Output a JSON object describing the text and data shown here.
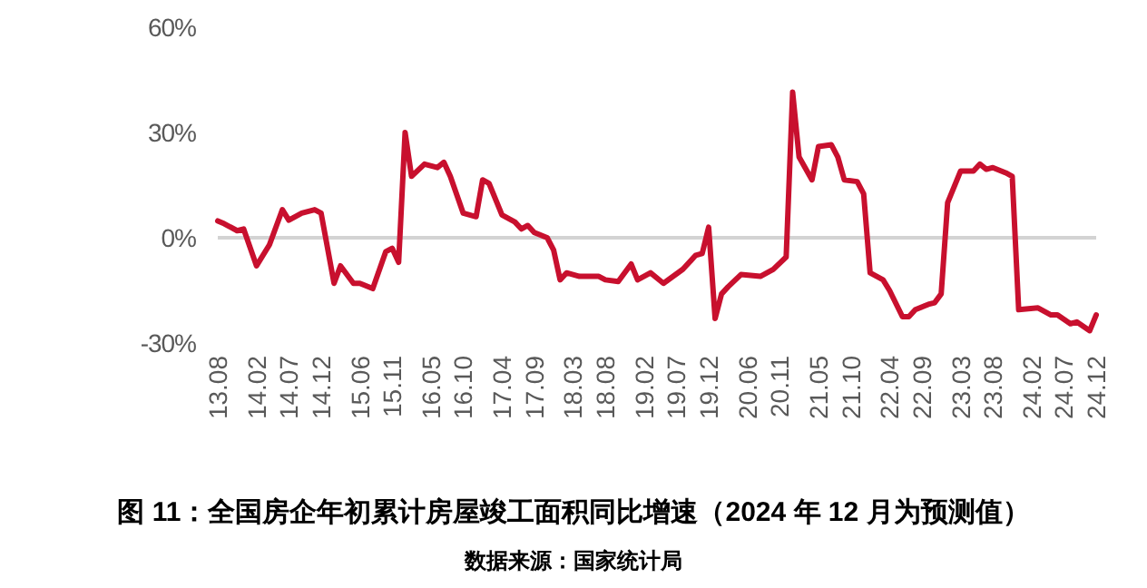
{
  "chart_data": {
    "type": "line",
    "title": "图 11：全国房企年初累计房屋竣工面积同比增速（2024 年 12 月为预测值）",
    "annotations": [
      "数据来源：国家统计局"
    ],
    "x": [
      "2013-08",
      "2013-09",
      "2013-11",
      "2013-12",
      "2014-02",
      "2014-04",
      "2014-06",
      "2014-07",
      "2014-09",
      "2014-11",
      "2014-12",
      "2015-02",
      "2015-03",
      "2015-05",
      "2015-06",
      "2015-08",
      "2015-10",
      "2015-11",
      "2015-12",
      "2016-01",
      "2016-02",
      "2016-04",
      "2016-06",
      "2016-07",
      "2016-08",
      "2016-10",
      "2016-12",
      "2017-01",
      "2017-02",
      "2017-04",
      "2017-06",
      "2017-07",
      "2017-08",
      "2017-09",
      "2017-11",
      "2017-12",
      "2018-01",
      "2018-02",
      "2018-04",
      "2018-07",
      "2018-08",
      "2018-10",
      "2018-12",
      "2019-01",
      "2019-03",
      "2019-05",
      "2019-08",
      "2019-10",
      "2019-11",
      "2019-12",
      "2020-01",
      "2020-02",
      "2020-03",
      "2020-05",
      "2020-08",
      "2020-10",
      "2020-12",
      "2021-01",
      "2021-02",
      "2021-04",
      "2021-05",
      "2021-07",
      "2021-08",
      "2021-09",
      "2021-11",
      "2021-12",
      "2022-01",
      "2022-03",
      "2022-04",
      "2022-06",
      "2022-07",
      "2022-08",
      "2022-10",
      "2022-11",
      "2022-12",
      "2023-01",
      "2023-03",
      "2023-05",
      "2023-06",
      "2023-07",
      "2023-08",
      "2023-10",
      "2023-11",
      "2023-12",
      "2024-03",
      "2024-05",
      "2024-06",
      "2024-08",
      "2024-09",
      "2024-11",
      "2024-12"
    ],
    "series": [
      {
        "color": "#c8102e",
        "values": [
          4.8,
          4,
          2,
          2.5,
          -8,
          -2,
          8,
          5,
          7,
          8,
          7,
          -13,
          -8,
          -13,
          -13,
          -14.5,
          -4,
          -3,
          -7,
          30,
          17.5,
          21,
          20,
          21.5,
          17.5,
          7,
          6,
          16.5,
          15.5,
          6.5,
          4.5,
          2.5,
          3.5,
          1.5,
          0,
          -3.5,
          -12,
          -10,
          -11,
          -11,
          -12,
          -12.5,
          -7.5,
          -12,
          -10,
          -13,
          -9,
          -5,
          -4.5,
          3,
          -23,
          -16,
          -14,
          -10.5,
          -11,
          -9,
          -5.5,
          41.5,
          23,
          16.5,
          26,
          26.5,
          23,
          16.5,
          16,
          12.5,
          -10,
          -12,
          -15,
          -22.5,
          -22.5,
          -20.5,
          -19,
          -18.5,
          -16,
          10,
          19,
          19,
          21,
          19.5,
          20,
          18.5,
          17.5,
          -20.5,
          -20,
          -22,
          -22,
          -24.5,
          -24,
          -26.5,
          -22
        ]
      }
    ],
    "xlim": [
      "2013-08",
      "2024-12"
    ],
    "ylim": [
      -30,
      60
    ],
    "yticks": [
      {
        "value": -30,
        "label": "-30%"
      },
      {
        "value": 0,
        "label": "0%"
      },
      {
        "value": 30,
        "label": "30%"
      },
      {
        "value": 60,
        "label": "60%"
      }
    ],
    "xticks": [
      {
        "value": "2013-08",
        "label": "13.08"
      },
      {
        "value": "2014-02",
        "label": "14.02"
      },
      {
        "value": "2014-07",
        "label": "14.07"
      },
      {
        "value": "2014-12",
        "label": "14.12"
      },
      {
        "value": "2015-06",
        "label": "15.06"
      },
      {
        "value": "2015-11",
        "label": "15.11"
      },
      {
        "value": "2016-05",
        "label": "16.05"
      },
      {
        "value": "2016-10",
        "label": "16.10"
      },
      {
        "value": "2017-04",
        "label": "17.04"
      },
      {
        "value": "2017-09",
        "label": "17.09"
      },
      {
        "value": "2018-03",
        "label": "18.03"
      },
      {
        "value": "2018-08",
        "label": "18.08"
      },
      {
        "value": "2019-02",
        "label": "19.02"
      },
      {
        "value": "2019-07",
        "label": "19.07"
      },
      {
        "value": "2019-12",
        "label": "19.12"
      },
      {
        "value": "2020-06",
        "label": "20.06"
      },
      {
        "value": "2020-11",
        "label": "20.11"
      },
      {
        "value": "2021-05",
        "label": "21.05"
      },
      {
        "value": "2021-10",
        "label": "21.10"
      },
      {
        "value": "2022-04",
        "label": "22.04"
      },
      {
        "value": "2022-09",
        "label": "22.09"
      },
      {
        "value": "2023-03",
        "label": "23.03"
      },
      {
        "value": "2023-08",
        "label": "23.08"
      },
      {
        "value": "2024-02",
        "label": "24.02"
      },
      {
        "value": "2024-07",
        "label": "24.07"
      },
      {
        "value": "2024-12",
        "label": "24.12"
      }
    ],
    "ref_lines": [
      {
        "axis": "y",
        "value": 0,
        "color": "#d3d3d3"
      }
    ],
    "grid": false,
    "line_style": "solid"
  }
}
